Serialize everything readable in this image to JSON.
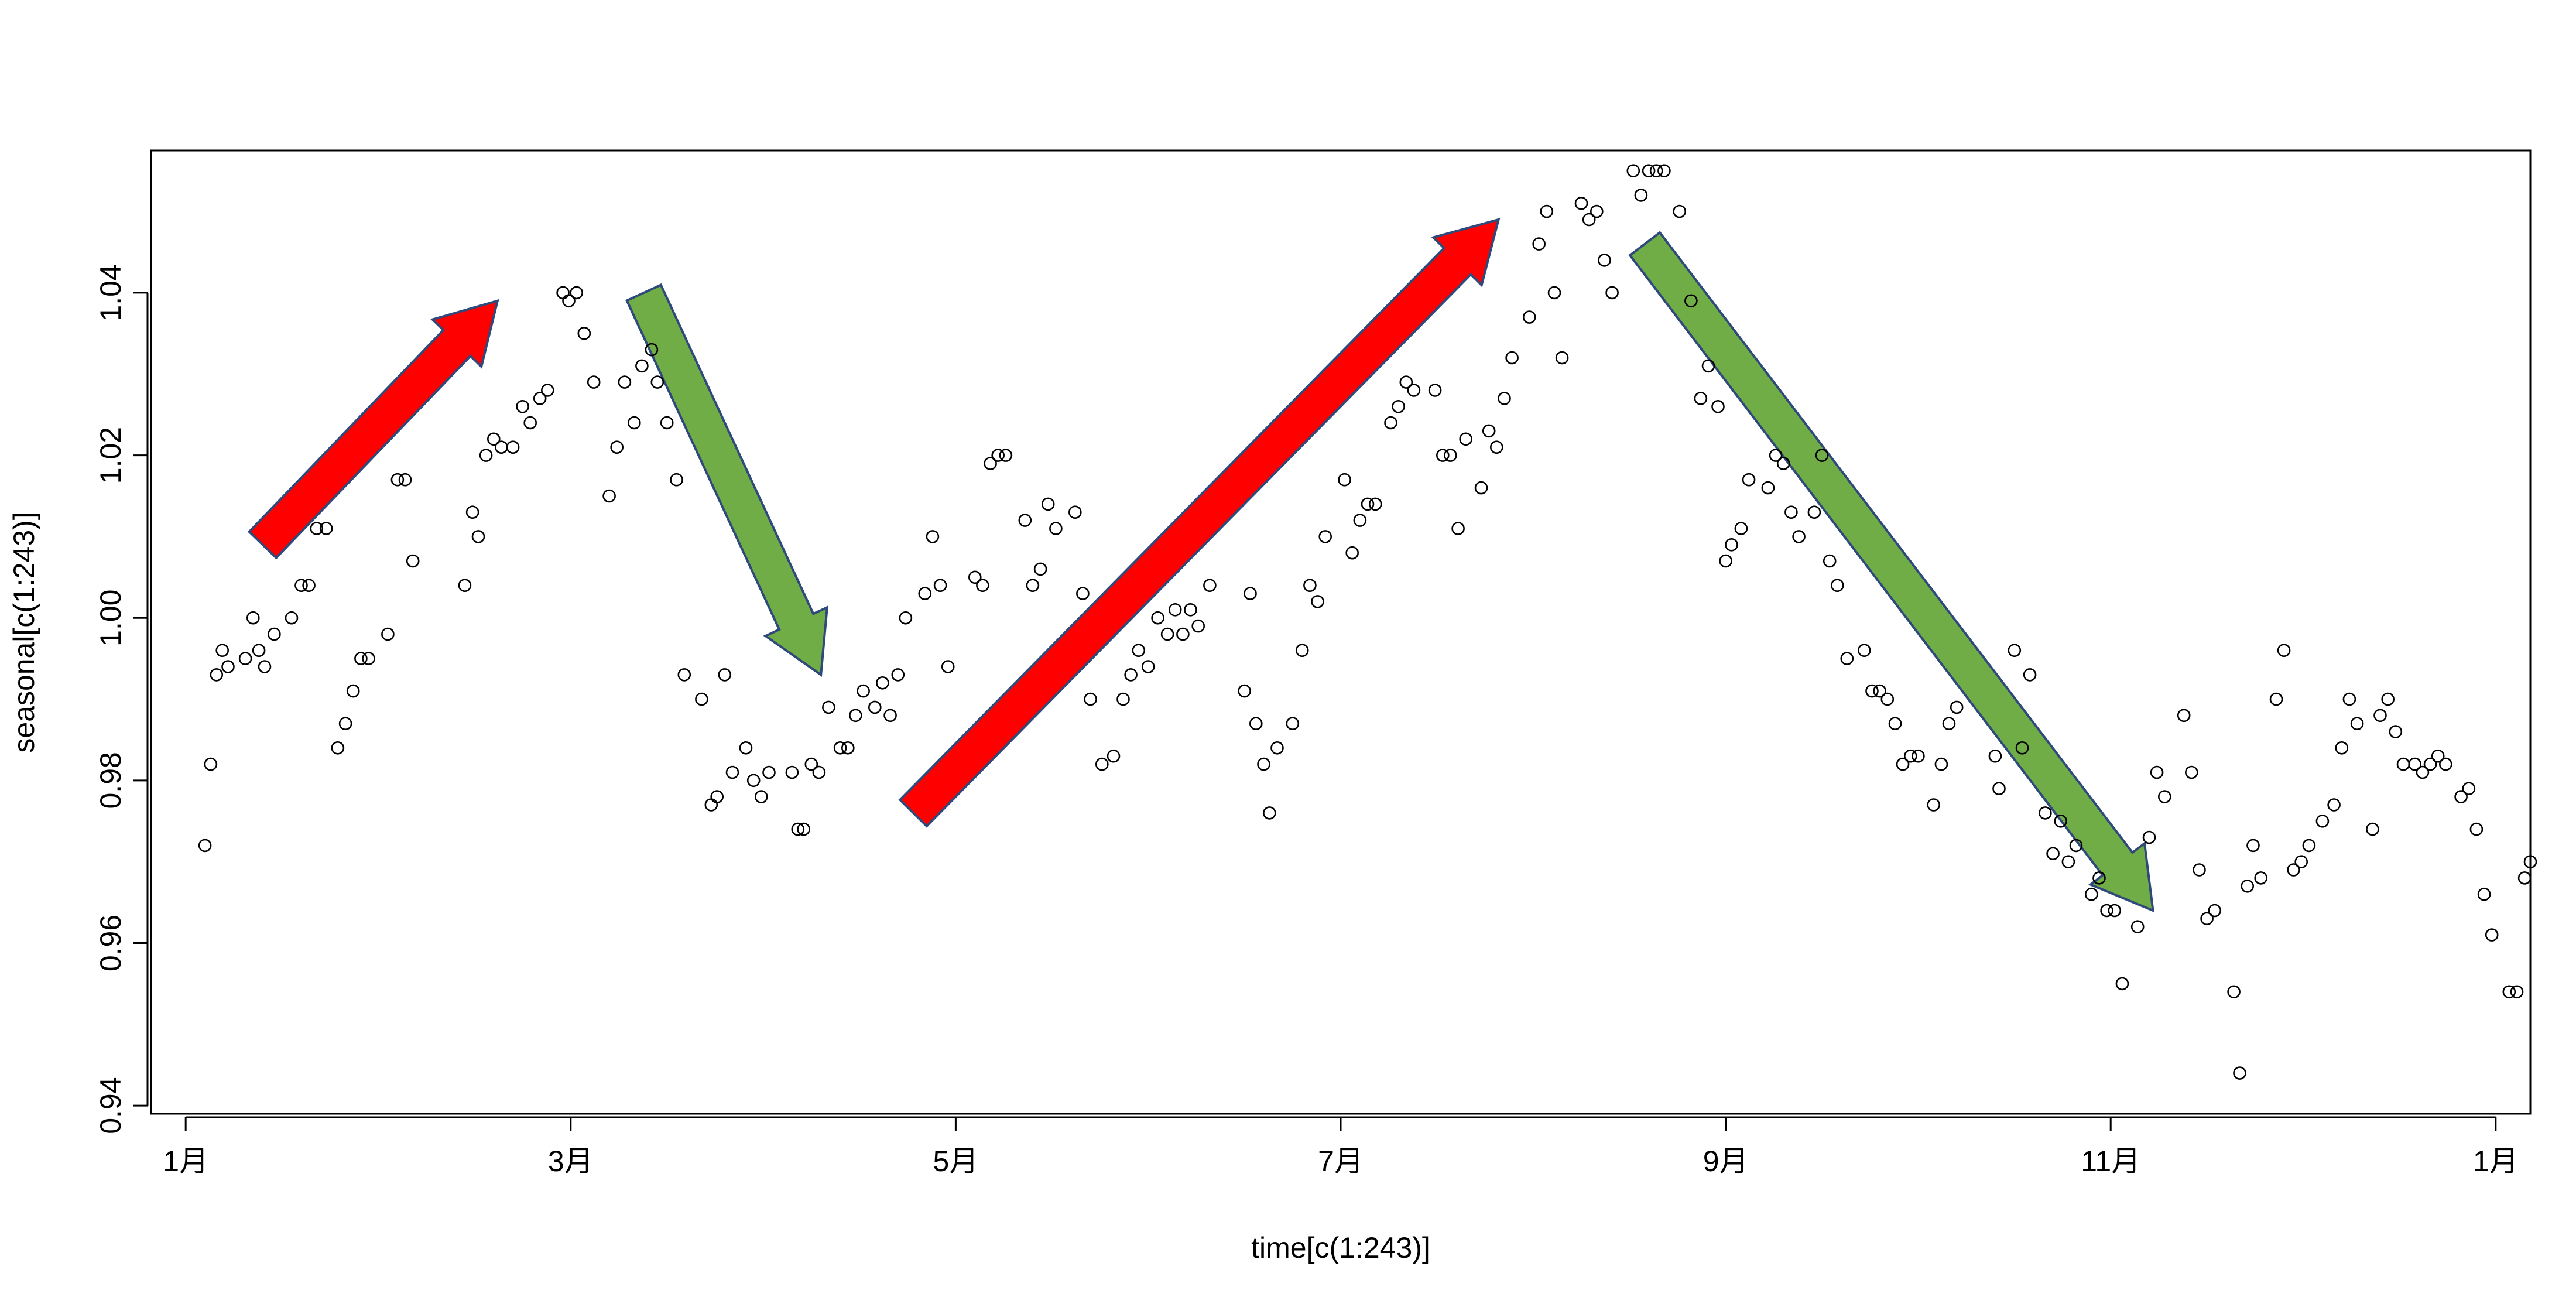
{
  "chart_data": {
    "type": "scatter",
    "title": "",
    "xlabel": "time[c(1:243)]",
    "ylabel": "seasonal[c(1:243)]",
    "xlim": [
      0.82,
      13.18
    ],
    "ylim": [
      0.939,
      1.0575
    ],
    "x_ticks": [
      {
        "value": 1,
        "label": "1月"
      },
      {
        "value": 3,
        "label": "3月"
      },
      {
        "value": 5,
        "label": "5月"
      },
      {
        "value": 7,
        "label": "7月"
      },
      {
        "value": 9,
        "label": "9月"
      },
      {
        "value": 11,
        "label": "11月"
      },
      {
        "value": 13,
        "label": "1月"
      }
    ],
    "y_ticks": [
      {
        "value": 0.94,
        "label": "0.94"
      },
      {
        "value": 0.96,
        "label": "0.96"
      },
      {
        "value": 0.98,
        "label": "0.98"
      },
      {
        "value": 1.0,
        "label": "1.00"
      },
      {
        "value": 1.02,
        "label": "1.02"
      },
      {
        "value": 1.04,
        "label": "1.04"
      }
    ],
    "grid": false,
    "points": [
      [
        1.1,
        0.972
      ],
      [
        1.13,
        0.982
      ],
      [
        1.16,
        0.993
      ],
      [
        1.19,
        0.996
      ],
      [
        1.22,
        0.994
      ],
      [
        1.31,
        0.995
      ],
      [
        1.35,
        1.0
      ],
      [
        1.38,
        0.996
      ],
      [
        1.41,
        0.994
      ],
      [
        1.46,
        0.998
      ],
      [
        1.55,
        1.0
      ],
      [
        1.6,
        1.004
      ],
      [
        1.64,
        1.004
      ],
      [
        1.68,
        1.011
      ],
      [
        1.73,
        1.011
      ],
      [
        1.79,
        0.984
      ],
      [
        1.83,
        0.987
      ],
      [
        1.87,
        0.991
      ],
      [
        1.91,
        0.995
      ],
      [
        1.95,
        0.995
      ],
      [
        2.05,
        0.998
      ],
      [
        2.1,
        1.017
      ],
      [
        2.14,
        1.017
      ],
      [
        2.18,
        1.007
      ],
      [
        2.45,
        1.004
      ],
      [
        2.49,
        1.013
      ],
      [
        2.52,
        1.01
      ],
      [
        2.56,
        1.02
      ],
      [
        2.6,
        1.022
      ],
      [
        2.64,
        1.021
      ],
      [
        2.7,
        1.021
      ],
      [
        2.75,
        1.026
      ],
      [
        2.79,
        1.024
      ],
      [
        2.84,
        1.027
      ],
      [
        2.88,
        1.028
      ],
      [
        2.96,
        1.04
      ],
      [
        2.99,
        1.039
      ],
      [
        3.03,
        1.04
      ],
      [
        3.07,
        1.035
      ],
      [
        3.12,
        1.029
      ],
      [
        3.2,
        1.015
      ],
      [
        3.24,
        1.021
      ],
      [
        3.28,
        1.029
      ],
      [
        3.33,
        1.024
      ],
      [
        3.37,
        1.031
      ],
      [
        3.42,
        1.033
      ],
      [
        3.45,
        1.029
      ],
      [
        3.5,
        1.024
      ],
      [
        3.55,
        1.017
      ],
      [
        3.59,
        0.993
      ],
      [
        3.68,
        0.99
      ],
      [
        3.73,
        0.977
      ],
      [
        3.76,
        0.978
      ],
      [
        3.8,
        0.993
      ],
      [
        3.84,
        0.981
      ],
      [
        3.91,
        0.984
      ],
      [
        3.95,
        0.98
      ],
      [
        3.99,
        0.978
      ],
      [
        4.03,
        0.981
      ],
      [
        4.15,
        0.981
      ],
      [
        4.18,
        0.974
      ],
      [
        4.21,
        0.974
      ],
      [
        4.25,
        0.982
      ],
      [
        4.29,
        0.981
      ],
      [
        4.34,
        0.989
      ],
      [
        4.4,
        0.984
      ],
      [
        4.44,
        0.984
      ],
      [
        4.48,
        0.988
      ],
      [
        4.52,
        0.991
      ],
      [
        4.58,
        0.989
      ],
      [
        4.62,
        0.992
      ],
      [
        4.66,
        0.988
      ],
      [
        4.7,
        0.993
      ],
      [
        4.74,
        1.0
      ],
      [
        4.84,
        1.003
      ],
      [
        4.88,
        1.01
      ],
      [
        4.92,
        1.004
      ],
      [
        4.96,
        0.994
      ],
      [
        5.1,
        1.005
      ],
      [
        5.14,
        1.004
      ],
      [
        5.18,
        1.019
      ],
      [
        5.22,
        1.02
      ],
      [
        5.26,
        1.02
      ],
      [
        5.36,
        1.012
      ],
      [
        5.4,
        1.004
      ],
      [
        5.44,
        1.006
      ],
      [
        5.48,
        1.014
      ],
      [
        5.52,
        1.011
      ],
      [
        5.62,
        1.013
      ],
      [
        5.66,
        1.003
      ],
      [
        5.7,
        0.99
      ],
      [
        5.76,
        0.982
      ],
      [
        5.82,
        0.983
      ],
      [
        5.87,
        0.99
      ],
      [
        5.91,
        0.993
      ],
      [
        5.95,
        0.996
      ],
      [
        6.0,
        0.994
      ],
      [
        6.05,
        1.0
      ],
      [
        6.1,
        0.998
      ],
      [
        6.14,
        1.001
      ],
      [
        6.18,
        0.998
      ],
      [
        6.22,
        1.001
      ],
      [
        6.26,
        0.999
      ],
      [
        6.32,
        1.004
      ],
      [
        6.5,
        0.991
      ],
      [
        6.53,
        1.003
      ],
      [
        6.56,
        0.987
      ],
      [
        6.6,
        0.982
      ],
      [
        6.63,
        0.976
      ],
      [
        6.67,
        0.984
      ],
      [
        6.75,
        0.987
      ],
      [
        6.8,
        0.996
      ],
      [
        6.84,
        1.004
      ],
      [
        6.88,
        1.002
      ],
      [
        6.92,
        1.01
      ],
      [
        7.02,
        1.017
      ],
      [
        7.06,
        1.008
      ],
      [
        7.1,
        1.012
      ],
      [
        7.14,
        1.014
      ],
      [
        7.18,
        1.014
      ],
      [
        7.26,
        1.024
      ],
      [
        7.3,
        1.026
      ],
      [
        7.34,
        1.029
      ],
      [
        7.38,
        1.028
      ],
      [
        7.49,
        1.028
      ],
      [
        7.53,
        1.02
      ],
      [
        7.57,
        1.02
      ],
      [
        7.61,
        1.011
      ],
      [
        7.65,
        1.022
      ],
      [
        7.73,
        1.016
      ],
      [
        7.77,
        1.023
      ],
      [
        7.81,
        1.021
      ],
      [
        7.85,
        1.027
      ],
      [
        7.89,
        1.032
      ],
      [
        7.98,
        1.037
      ],
      [
        8.03,
        1.046
      ],
      [
        8.07,
        1.05
      ],
      [
        8.11,
        1.04
      ],
      [
        8.15,
        1.032
      ],
      [
        8.25,
        1.051
      ],
      [
        8.29,
        1.049
      ],
      [
        8.33,
        1.05
      ],
      [
        8.37,
        1.044
      ],
      [
        8.41,
        1.04
      ],
      [
        8.52,
        1.055
      ],
      [
        8.56,
        1.052
      ],
      [
        8.6,
        1.055
      ],
      [
        8.64,
        1.055
      ],
      [
        8.68,
        1.055
      ],
      [
        8.76,
        1.05
      ],
      [
        8.82,
        1.039
      ],
      [
        8.87,
        1.027
      ],
      [
        8.91,
        1.031
      ],
      [
        8.96,
        1.026
      ],
      [
        9.0,
        1.007
      ],
      [
        9.03,
        1.009
      ],
      [
        9.08,
        1.011
      ],
      [
        9.12,
        1.017
      ],
      [
        9.22,
        1.016
      ],
      [
        9.26,
        1.02
      ],
      [
        9.3,
        1.019
      ],
      [
        9.34,
        1.013
      ],
      [
        9.38,
        1.01
      ],
      [
        9.46,
        1.013
      ],
      [
        9.5,
        1.02
      ],
      [
        9.54,
        1.007
      ],
      [
        9.58,
        1.004
      ],
      [
        9.63,
        0.995
      ],
      [
        9.72,
        0.996
      ],
      [
        9.76,
        0.991
      ],
      [
        9.8,
        0.991
      ],
      [
        9.84,
        0.99
      ],
      [
        9.88,
        0.987
      ],
      [
        9.92,
        0.982
      ],
      [
        9.96,
        0.983
      ],
      [
        10.0,
        0.983
      ],
      [
        10.08,
        0.977
      ],
      [
        10.12,
        0.982
      ],
      [
        10.16,
        0.987
      ],
      [
        10.2,
        0.989
      ],
      [
        10.4,
        0.983
      ],
      [
        10.42,
        0.979
      ],
      [
        10.5,
        0.996
      ],
      [
        10.54,
        0.984
      ],
      [
        10.58,
        0.993
      ],
      [
        10.66,
        0.976
      ],
      [
        10.7,
        0.971
      ],
      [
        10.74,
        0.975
      ],
      [
        10.78,
        0.97
      ],
      [
        10.82,
        0.972
      ],
      [
        10.9,
        0.966
      ],
      [
        10.94,
        0.968
      ],
      [
        10.98,
        0.964
      ],
      [
        11.02,
        0.964
      ],
      [
        11.06,
        0.955
      ],
      [
        11.14,
        0.962
      ],
      [
        11.2,
        0.973
      ],
      [
        11.24,
        0.981
      ],
      [
        11.28,
        0.978
      ],
      [
        11.38,
        0.988
      ],
      [
        11.42,
        0.981
      ],
      [
        11.46,
        0.969
      ],
      [
        11.5,
        0.963
      ],
      [
        11.54,
        0.964
      ],
      [
        11.64,
        0.954
      ],
      [
        11.67,
        0.944
      ],
      [
        11.71,
        0.967
      ],
      [
        11.74,
        0.972
      ],
      [
        11.78,
        0.968
      ],
      [
        11.86,
        0.99
      ],
      [
        11.9,
        0.996
      ],
      [
        11.95,
        0.969
      ],
      [
        11.99,
        0.97
      ],
      [
        12.03,
        0.972
      ],
      [
        12.1,
        0.975
      ],
      [
        12.16,
        0.977
      ],
      [
        12.2,
        0.984
      ],
      [
        12.24,
        0.99
      ],
      [
        12.28,
        0.987
      ],
      [
        12.36,
        0.974
      ],
      [
        12.4,
        0.988
      ],
      [
        12.44,
        0.99
      ],
      [
        12.48,
        0.986
      ],
      [
        12.52,
        0.982
      ],
      [
        12.58,
        0.982
      ],
      [
        12.62,
        0.981
      ],
      [
        12.66,
        0.982
      ],
      [
        12.7,
        0.983
      ],
      [
        12.74,
        0.982
      ],
      [
        12.82,
        0.978
      ],
      [
        12.86,
        0.979
      ],
      [
        12.9,
        0.974
      ],
      [
        12.94,
        0.966
      ],
      [
        12.98,
        0.961
      ],
      [
        13.07,
        0.954
      ],
      [
        13.11,
        0.954
      ],
      [
        13.15,
        0.968
      ],
      [
        13.18,
        0.97
      ]
    ],
    "annotations": [
      {
        "type": "arrow",
        "color": "#ff0000",
        "from": [
          1.4,
          1.009
        ],
        "to": [
          2.62,
          1.039
        ]
      },
      {
        "type": "arrow",
        "color": "#70ad47",
        "from": [
          3.38,
          1.04
        ],
        "to": [
          4.3,
          0.993
        ]
      },
      {
        "type": "arrow",
        "color": "#ff0000",
        "from": [
          4.78,
          0.976
        ],
        "to": [
          7.82,
          1.049
        ]
      },
      {
        "type": "arrow",
        "color": "#70ad47",
        "from": [
          8.58,
          1.046
        ],
        "to": [
          11.22,
          0.964
        ]
      }
    ]
  }
}
